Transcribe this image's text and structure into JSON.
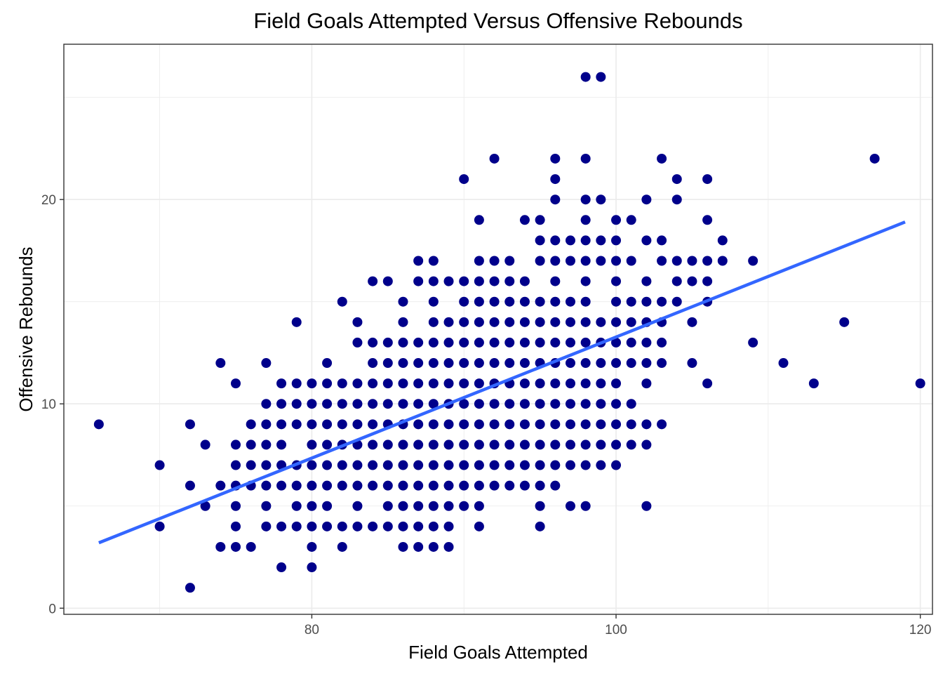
{
  "chart_data": {
    "type": "scatter",
    "title": "Field Goals Attempted Versus Offensive Rebounds",
    "xlabel": "Field Goals Attempted",
    "ylabel": "Offensive Rebounds",
    "xlim": [
      63.7,
      120.8
    ],
    "ylim": [
      -0.3,
      27.6
    ],
    "x_ticks": [
      80,
      100,
      120
    ],
    "y_ticks": [
      0,
      10,
      20
    ],
    "x_tick_labels": [
      "80",
      "100",
      "120"
    ],
    "y_tick_labels": [
      "0",
      "10",
      "20"
    ],
    "grid": true,
    "point_color": "#00008b",
    "trend_line": {
      "type": "linear",
      "color": "#3366ff",
      "x": [
        66,
        119
      ],
      "y": [
        3.2,
        18.9
      ]
    },
    "points": [
      [
        66,
        9
      ],
      [
        70,
        7
      ],
      [
        70,
        4
      ],
      [
        72,
        9
      ],
      [
        72,
        6
      ],
      [
        72,
        1
      ],
      [
        73,
        8
      ],
      [
        73,
        5
      ],
      [
        74,
        12
      ],
      [
        74,
        6
      ],
      [
        74,
        3
      ],
      [
        75,
        11
      ],
      [
        75,
        8
      ],
      [
        75,
        7
      ],
      [
        75,
        6
      ],
      [
        75,
        5
      ],
      [
        75,
        4
      ],
      [
        75,
        3
      ],
      [
        76,
        9
      ],
      [
        76,
        8
      ],
      [
        76,
        7
      ],
      [
        76,
        6
      ],
      [
        76,
        3
      ],
      [
        77,
        12
      ],
      [
        77,
        10
      ],
      [
        77,
        9
      ],
      [
        77,
        8
      ],
      [
        77,
        7
      ],
      [
        77,
        6
      ],
      [
        77,
        5
      ],
      [
        77,
        4
      ],
      [
        78,
        11
      ],
      [
        78,
        10
      ],
      [
        78,
        9
      ],
      [
        78,
        8
      ],
      [
        78,
        7
      ],
      [
        78,
        6
      ],
      [
        78,
        4
      ],
      [
        78,
        2
      ],
      [
        79,
        14
      ],
      [
        79,
        11
      ],
      [
        79,
        10
      ],
      [
        79,
        9
      ],
      [
        79,
        7
      ],
      [
        79,
        6
      ],
      [
        79,
        5
      ],
      [
        79,
        4
      ],
      [
        80,
        11
      ],
      [
        80,
        10
      ],
      [
        80,
        9
      ],
      [
        80,
        8
      ],
      [
        80,
        7
      ],
      [
        80,
        6
      ],
      [
        80,
        5
      ],
      [
        80,
        4
      ],
      [
        80,
        3
      ],
      [
        80,
        2
      ],
      [
        81,
        12
      ],
      [
        81,
        11
      ],
      [
        81,
        10
      ],
      [
        81,
        9
      ],
      [
        81,
        8
      ],
      [
        81,
        7
      ],
      [
        81,
        6
      ],
      [
        81,
        5
      ],
      [
        81,
        4
      ],
      [
        82,
        15
      ],
      [
        82,
        11
      ],
      [
        82,
        10
      ],
      [
        82,
        9
      ],
      [
        82,
        8
      ],
      [
        82,
        7
      ],
      [
        82,
        6
      ],
      [
        82,
        4
      ],
      [
        82,
        3
      ],
      [
        83,
        14
      ],
      [
        83,
        13
      ],
      [
        83,
        11
      ],
      [
        83,
        10
      ],
      [
        83,
        9
      ],
      [
        83,
        8
      ],
      [
        83,
        7
      ],
      [
        83,
        6
      ],
      [
        83,
        5
      ],
      [
        83,
        4
      ],
      [
        84,
        16
      ],
      [
        84,
        13
      ],
      [
        84,
        12
      ],
      [
        84,
        11
      ],
      [
        84,
        10
      ],
      [
        84,
        9
      ],
      [
        84,
        8
      ],
      [
        84,
        7
      ],
      [
        84,
        6
      ],
      [
        84,
        4
      ],
      [
        85,
        16
      ],
      [
        85,
        13
      ],
      [
        85,
        12
      ],
      [
        85,
        11
      ],
      [
        85,
        10
      ],
      [
        85,
        9
      ],
      [
        85,
        8
      ],
      [
        85,
        7
      ],
      [
        85,
        6
      ],
      [
        85,
        5
      ],
      [
        85,
        4
      ],
      [
        86,
        15
      ],
      [
        86,
        14
      ],
      [
        86,
        13
      ],
      [
        86,
        12
      ],
      [
        86,
        11
      ],
      [
        86,
        10
      ],
      [
        86,
        9
      ],
      [
        86,
        8
      ],
      [
        86,
        7
      ],
      [
        86,
        6
      ],
      [
        86,
        5
      ],
      [
        86,
        4
      ],
      [
        86,
        3
      ],
      [
        87,
        17
      ],
      [
        87,
        16
      ],
      [
        87,
        13
      ],
      [
        87,
        12
      ],
      [
        87,
        11
      ],
      [
        87,
        10
      ],
      [
        87,
        9
      ],
      [
        87,
        8
      ],
      [
        87,
        7
      ],
      [
        87,
        6
      ],
      [
        87,
        5
      ],
      [
        87,
        4
      ],
      [
        87,
        3
      ],
      [
        88,
        17
      ],
      [
        88,
        16
      ],
      [
        88,
        15
      ],
      [
        88,
        14
      ],
      [
        88,
        13
      ],
      [
        88,
        12
      ],
      [
        88,
        11
      ],
      [
        88,
        10
      ],
      [
        88,
        9
      ],
      [
        88,
        8
      ],
      [
        88,
        7
      ],
      [
        88,
        6
      ],
      [
        88,
        5
      ],
      [
        88,
        4
      ],
      [
        88,
        3
      ],
      [
        89,
        16
      ],
      [
        89,
        14
      ],
      [
        89,
        13
      ],
      [
        89,
        12
      ],
      [
        89,
        11
      ],
      [
        89,
        10
      ],
      [
        89,
        9
      ],
      [
        89,
        8
      ],
      [
        89,
        7
      ],
      [
        89,
        6
      ],
      [
        89,
        5
      ],
      [
        89,
        4
      ],
      [
        89,
        3
      ],
      [
        90,
        21
      ],
      [
        90,
        16
      ],
      [
        90,
        15
      ],
      [
        90,
        14
      ],
      [
        90,
        13
      ],
      [
        90,
        12
      ],
      [
        90,
        11
      ],
      [
        90,
        10
      ],
      [
        90,
        9
      ],
      [
        90,
        8
      ],
      [
        90,
        7
      ],
      [
        90,
        6
      ],
      [
        90,
        5
      ],
      [
        91,
        19
      ],
      [
        91,
        17
      ],
      [
        91,
        16
      ],
      [
        91,
        15
      ],
      [
        91,
        14
      ],
      [
        91,
        13
      ],
      [
        91,
        12
      ],
      [
        91,
        11
      ],
      [
        91,
        10
      ],
      [
        91,
        9
      ],
      [
        91,
        8
      ],
      [
        91,
        7
      ],
      [
        91,
        6
      ],
      [
        91,
        5
      ],
      [
        91,
        4
      ],
      [
        92,
        22
      ],
      [
        92,
        17
      ],
      [
        92,
        16
      ],
      [
        92,
        15
      ],
      [
        92,
        14
      ],
      [
        92,
        13
      ],
      [
        92,
        12
      ],
      [
        92,
        11
      ],
      [
        92,
        10
      ],
      [
        92,
        9
      ],
      [
        92,
        8
      ],
      [
        92,
        7
      ],
      [
        92,
        6
      ],
      [
        93,
        17
      ],
      [
        93,
        16
      ],
      [
        93,
        15
      ],
      [
        93,
        14
      ],
      [
        93,
        13
      ],
      [
        93,
        12
      ],
      [
        93,
        11
      ],
      [
        93,
        10
      ],
      [
        93,
        9
      ],
      [
        93,
        8
      ],
      [
        93,
        7
      ],
      [
        93,
        6
      ],
      [
        94,
        19
      ],
      [
        94,
        16
      ],
      [
        94,
        15
      ],
      [
        94,
        14
      ],
      [
        94,
        13
      ],
      [
        94,
        12
      ],
      [
        94,
        11
      ],
      [
        94,
        10
      ],
      [
        94,
        9
      ],
      [
        94,
        8
      ],
      [
        94,
        7
      ],
      [
        94,
        6
      ],
      [
        95,
        19
      ],
      [
        95,
        18
      ],
      [
        95,
        17
      ],
      [
        95,
        15
      ],
      [
        95,
        14
      ],
      [
        95,
        13
      ],
      [
        95,
        12
      ],
      [
        95,
        11
      ],
      [
        95,
        10
      ],
      [
        95,
        9
      ],
      [
        95,
        8
      ],
      [
        95,
        7
      ],
      [
        95,
        6
      ],
      [
        95,
        5
      ],
      [
        95,
        4
      ],
      [
        96,
        22
      ],
      [
        96,
        21
      ],
      [
        96,
        20
      ],
      [
        96,
        18
      ],
      [
        96,
        17
      ],
      [
        96,
        16
      ],
      [
        96,
        15
      ],
      [
        96,
        14
      ],
      [
        96,
        13
      ],
      [
        96,
        12
      ],
      [
        96,
        11
      ],
      [
        96,
        10
      ],
      [
        96,
        9
      ],
      [
        96,
        8
      ],
      [
        96,
        7
      ],
      [
        96,
        6
      ],
      [
        97,
        18
      ],
      [
        97,
        17
      ],
      [
        97,
        15
      ],
      [
        97,
        14
      ],
      [
        97,
        13
      ],
      [
        97,
        12
      ],
      [
        97,
        11
      ],
      [
        97,
        10
      ],
      [
        97,
        9
      ],
      [
        97,
        8
      ],
      [
        97,
        7
      ],
      [
        97,
        5
      ],
      [
        98,
        26
      ],
      [
        98,
        22
      ],
      [
        98,
        20
      ],
      [
        98,
        19
      ],
      [
        98,
        18
      ],
      [
        98,
        17
      ],
      [
        98,
        16
      ],
      [
        98,
        15
      ],
      [
        98,
        14
      ],
      [
        98,
        13
      ],
      [
        98,
        12
      ],
      [
        98,
        11
      ],
      [
        98,
        10
      ],
      [
        98,
        9
      ],
      [
        98,
        8
      ],
      [
        98,
        7
      ],
      [
        98,
        5
      ],
      [
        99,
        26
      ],
      [
        99,
        20
      ],
      [
        99,
        18
      ],
      [
        99,
        17
      ],
      [
        99,
        14
      ],
      [
        99,
        13
      ],
      [
        99,
        12
      ],
      [
        99,
        11
      ],
      [
        99,
        10
      ],
      [
        99,
        9
      ],
      [
        99,
        8
      ],
      [
        99,
        7
      ],
      [
        100,
        19
      ],
      [
        100,
        18
      ],
      [
        100,
        17
      ],
      [
        100,
        16
      ],
      [
        100,
        15
      ],
      [
        100,
        14
      ],
      [
        100,
        13
      ],
      [
        100,
        12
      ],
      [
        100,
        11
      ],
      [
        100,
        10
      ],
      [
        100,
        9
      ],
      [
        100,
        8
      ],
      [
        100,
        7
      ],
      [
        101,
        19
      ],
      [
        101,
        17
      ],
      [
        101,
        15
      ],
      [
        101,
        14
      ],
      [
        101,
        13
      ],
      [
        101,
        12
      ],
      [
        101,
        10
      ],
      [
        101,
        9
      ],
      [
        101,
        8
      ],
      [
        102,
        20
      ],
      [
        102,
        18
      ],
      [
        102,
        16
      ],
      [
        102,
        15
      ],
      [
        102,
        14
      ],
      [
        102,
        13
      ],
      [
        102,
        12
      ],
      [
        102,
        11
      ],
      [
        102,
        9
      ],
      [
        102,
        8
      ],
      [
        102,
        5
      ],
      [
        103,
        22
      ],
      [
        103,
        18
      ],
      [
        103,
        17
      ],
      [
        103,
        15
      ],
      [
        103,
        14
      ],
      [
        103,
        13
      ],
      [
        103,
        12
      ],
      [
        103,
        9
      ],
      [
        104,
        21
      ],
      [
        104,
        20
      ],
      [
        104,
        17
      ],
      [
        104,
        16
      ],
      [
        104,
        15
      ],
      [
        105,
        17
      ],
      [
        105,
        16
      ],
      [
        105,
        14
      ],
      [
        105,
        12
      ],
      [
        106,
        21
      ],
      [
        106,
        19
      ],
      [
        106,
        17
      ],
      [
        106,
        16
      ],
      [
        106,
        15
      ],
      [
        106,
        11
      ],
      [
        107,
        18
      ],
      [
        107,
        17
      ],
      [
        109,
        17
      ],
      [
        109,
        13
      ],
      [
        111,
        12
      ],
      [
        113,
        11
      ],
      [
        115,
        14
      ],
      [
        117,
        22
      ],
      [
        120,
        11
      ]
    ]
  }
}
